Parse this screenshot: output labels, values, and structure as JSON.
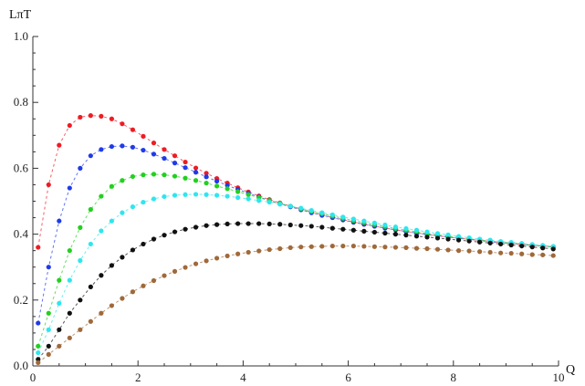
{
  "chart_data": {
    "type": "scatter",
    "title": "",
    "xlabel": "Q",
    "ylabel": "LπT",
    "xlim": [
      0,
      10
    ],
    "ylim": [
      0,
      1.0
    ],
    "xticks": [
      0,
      2,
      4,
      6,
      8,
      10
    ],
    "xtick_labels": [
      "0",
      "2",
      "4",
      "6",
      "8",
      "10"
    ],
    "yticks": [
      0.0,
      0.2,
      0.4,
      0.6,
      0.8,
      1.0
    ],
    "ytick_labels": [
      "0.0",
      "0.2",
      "0.4",
      "0.6",
      "0.8",
      "1.0"
    ],
    "grid": false,
    "legend": "none",
    "series": [
      {
        "color": "#ee1c24",
        "x": [
          0.1,
          0.3,
          0.5,
          0.7,
          0.9,
          1.1,
          1.3,
          1.5,
          1.7,
          1.9,
          2.1,
          2.3,
          2.5,
          2.7,
          2.9,
          3.1,
          3.3,
          3.5,
          3.7,
          3.9,
          4.1,
          4.3,
          4.5,
          4.7,
          4.9,
          5.1,
          5.3,
          5.5,
          5.7,
          5.9,
          6.1,
          6.3,
          6.5,
          6.7,
          6.9,
          7.1,
          7.3,
          7.5,
          7.7,
          7.9,
          8.1,
          8.3,
          8.5,
          8.7,
          8.9,
          9.1,
          9.3,
          9.5,
          9.7,
          9.9
        ],
        "y": [
          0.36,
          0.55,
          0.67,
          0.73,
          0.755,
          0.76,
          0.758,
          0.75,
          0.735,
          0.717,
          0.697,
          0.677,
          0.657,
          0.638,
          0.619,
          0.601,
          0.585,
          0.569,
          0.555,
          0.541,
          0.528,
          0.516,
          0.505,
          0.495,
          0.485,
          0.476,
          0.467,
          0.459,
          0.451,
          0.444,
          0.437,
          0.43,
          0.424,
          0.419,
          0.413,
          0.408,
          0.404,
          0.399,
          0.395,
          0.391,
          0.388,
          0.384,
          0.381,
          0.378,
          0.375,
          0.372,
          0.369,
          0.366,
          0.364,
          0.362
        ]
      },
      {
        "color": "#1f3be8",
        "x": [
          0.1,
          0.3,
          0.5,
          0.7,
          0.9,
          1.1,
          1.3,
          1.5,
          1.7,
          1.9,
          2.1,
          2.3,
          2.5,
          2.7,
          2.9,
          3.1,
          3.3,
          3.5,
          3.7,
          3.9,
          4.1,
          4.3,
          4.5,
          4.7,
          4.9,
          5.1,
          5.3,
          5.5,
          5.7,
          5.9,
          6.1,
          6.3,
          6.5,
          6.7,
          6.9,
          7.1,
          7.3,
          7.5,
          7.7,
          7.9,
          8.1,
          8.3,
          8.5,
          8.7,
          8.9,
          9.1,
          9.3,
          9.5,
          9.7,
          9.9
        ],
        "y": [
          0.13,
          0.3,
          0.44,
          0.54,
          0.6,
          0.638,
          0.657,
          0.666,
          0.668,
          0.664,
          0.655,
          0.643,
          0.63,
          0.616,
          0.602,
          0.588,
          0.574,
          0.561,
          0.548,
          0.536,
          0.524,
          0.513,
          0.502,
          0.492,
          0.483,
          0.474,
          0.465,
          0.457,
          0.45,
          0.443,
          0.436,
          0.43,
          0.424,
          0.418,
          0.413,
          0.408,
          0.403,
          0.399,
          0.395,
          0.391,
          0.387,
          0.384,
          0.381,
          0.377,
          0.374,
          0.372,
          0.369,
          0.366,
          0.364,
          0.361
        ]
      },
      {
        "color": "#22d01e",
        "x": [
          0.1,
          0.3,
          0.5,
          0.7,
          0.9,
          1.1,
          1.3,
          1.5,
          1.7,
          1.9,
          2.1,
          2.3,
          2.5,
          2.7,
          2.9,
          3.1,
          3.3,
          3.5,
          3.7,
          3.9,
          4.1,
          4.3,
          4.5,
          4.7,
          4.9,
          5.1,
          5.3,
          5.5,
          5.7,
          5.9,
          6.1,
          6.3,
          6.5,
          6.7,
          6.9,
          7.1,
          7.3,
          7.5,
          7.7,
          7.9,
          8.1,
          8.3,
          8.5,
          8.7,
          8.9,
          9.1,
          9.3,
          9.5,
          9.7,
          9.9
        ],
        "y": [
          0.06,
          0.16,
          0.26,
          0.35,
          0.42,
          0.475,
          0.515,
          0.545,
          0.563,
          0.575,
          0.58,
          0.582,
          0.58,
          0.576,
          0.57,
          0.563,
          0.555,
          0.546,
          0.538,
          0.529,
          0.52,
          0.511,
          0.502,
          0.494,
          0.485,
          0.477,
          0.469,
          0.462,
          0.455,
          0.448,
          0.441,
          0.435,
          0.429,
          0.423,
          0.417,
          0.412,
          0.407,
          0.402,
          0.398,
          0.394,
          0.39,
          0.386,
          0.382,
          0.379,
          0.376,
          0.373,
          0.37,
          0.367,
          0.364,
          0.361
        ]
      },
      {
        "color": "#2ee6f0",
        "x": [
          0.1,
          0.3,
          0.5,
          0.7,
          0.9,
          1.1,
          1.3,
          1.5,
          1.7,
          1.9,
          2.1,
          2.3,
          2.5,
          2.7,
          2.9,
          3.1,
          3.3,
          3.5,
          3.7,
          3.9,
          4.1,
          4.3,
          4.5,
          4.7,
          4.9,
          5.1,
          5.3,
          5.5,
          5.7,
          5.9,
          6.1,
          6.3,
          6.5,
          6.7,
          6.9,
          7.1,
          7.3,
          7.5,
          7.7,
          7.9,
          8.1,
          8.3,
          8.5,
          8.7,
          8.9,
          9.1,
          9.3,
          9.5,
          9.7,
          9.9
        ],
        "y": [
          0.04,
          0.11,
          0.19,
          0.26,
          0.32,
          0.37,
          0.41,
          0.44,
          0.465,
          0.483,
          0.497,
          0.507,
          0.514,
          0.518,
          0.52,
          0.521,
          0.52,
          0.518,
          0.515,
          0.511,
          0.507,
          0.502,
          0.497,
          0.491,
          0.485,
          0.479,
          0.472,
          0.465,
          0.459,
          0.452,
          0.446,
          0.44,
          0.434,
          0.428,
          0.422,
          0.417,
          0.412,
          0.407,
          0.402,
          0.398,
          0.393,
          0.389,
          0.385,
          0.382,
          0.378,
          0.375,
          0.372,
          0.369,
          0.366,
          0.363
        ]
      },
      {
        "color": "#111111",
        "x": [
          0.1,
          0.3,
          0.5,
          0.7,
          0.9,
          1.1,
          1.3,
          1.5,
          1.7,
          1.9,
          2.1,
          2.3,
          2.5,
          2.7,
          2.9,
          3.1,
          3.3,
          3.5,
          3.7,
          3.9,
          4.1,
          4.3,
          4.5,
          4.7,
          4.9,
          5.1,
          5.3,
          5.5,
          5.7,
          5.9,
          6.1,
          6.3,
          6.5,
          6.7,
          6.9,
          7.1,
          7.3,
          7.5,
          7.7,
          7.9,
          8.1,
          8.3,
          8.5,
          8.7,
          8.9,
          9.1,
          9.3,
          9.5,
          9.7,
          9.9
        ],
        "y": [
          0.02,
          0.06,
          0.11,
          0.16,
          0.2,
          0.24,
          0.275,
          0.305,
          0.33,
          0.352,
          0.37,
          0.385,
          0.397,
          0.407,
          0.415,
          0.421,
          0.426,
          0.429,
          0.431,
          0.432,
          0.432,
          0.432,
          0.431,
          0.43,
          0.428,
          0.426,
          0.424,
          0.421,
          0.418,
          0.415,
          0.412,
          0.409,
          0.406,
          0.403,
          0.4,
          0.397,
          0.394,
          0.391,
          0.388,
          0.385,
          0.382,
          0.379,
          0.376,
          0.373,
          0.37,
          0.367,
          0.364,
          0.361,
          0.358,
          0.355
        ]
      },
      {
        "color": "#a0693a",
        "x": [
          0.1,
          0.3,
          0.5,
          0.7,
          0.9,
          1.1,
          1.3,
          1.5,
          1.7,
          1.9,
          2.1,
          2.3,
          2.5,
          2.7,
          2.9,
          3.1,
          3.3,
          3.5,
          3.7,
          3.9,
          4.1,
          4.3,
          4.5,
          4.7,
          4.9,
          5.1,
          5.3,
          5.5,
          5.7,
          5.9,
          6.1,
          6.3,
          6.5,
          6.7,
          6.9,
          7.1,
          7.3,
          7.5,
          7.7,
          7.9,
          8.1,
          8.3,
          8.5,
          8.7,
          8.9,
          9.1,
          9.3,
          9.5,
          9.7,
          9.9
        ],
        "y": [
          0.01,
          0.035,
          0.06,
          0.085,
          0.11,
          0.135,
          0.16,
          0.183,
          0.205,
          0.225,
          0.243,
          0.259,
          0.274,
          0.287,
          0.299,
          0.31,
          0.319,
          0.327,
          0.334,
          0.34,
          0.345,
          0.349,
          0.353,
          0.356,
          0.359,
          0.361,
          0.362,
          0.363,
          0.364,
          0.364,
          0.364,
          0.363,
          0.362,
          0.361,
          0.36,
          0.359,
          0.357,
          0.356,
          0.354,
          0.352,
          0.35,
          0.349,
          0.347,
          0.345,
          0.343,
          0.342,
          0.34,
          0.338,
          0.337,
          0.335
        ]
      }
    ]
  }
}
